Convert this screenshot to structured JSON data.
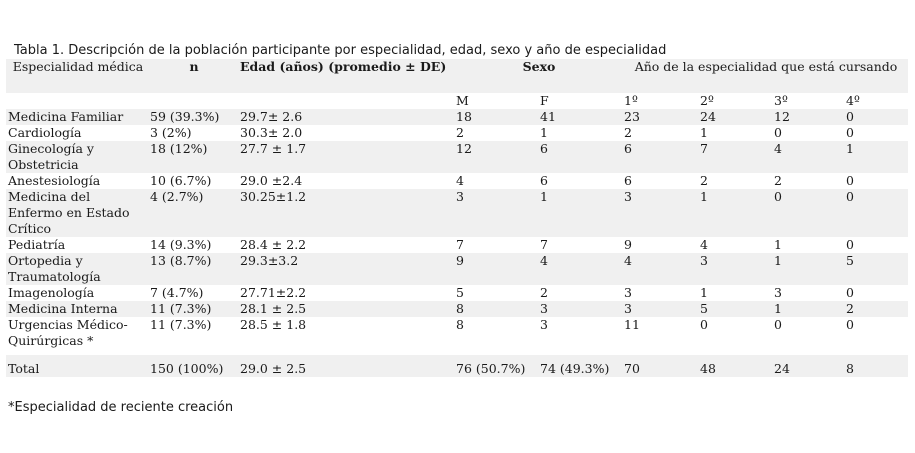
{
  "caption": "Tabla 1. Descripción de la población participante por especialidad, edad, sexo y año de especialidad",
  "headers": {
    "especialidad": "Especialidad médica",
    "n": "n",
    "edad": "Edad (años) (promedio ± DE)",
    "sexo": "Sexo",
    "anio": "Año de la especialidad que está cursando",
    "m": "M",
    "f": "F",
    "y1": "1º",
    "y2": "2º",
    "y3": "3º",
    "y4": "4º"
  },
  "rows": [
    {
      "esp": "Medicina Familiar",
      "n": "59 (39.3%)",
      "edad": "29.7± 2.6",
      "m": "18",
      "f": "41",
      "y1": "23",
      "y2": "24",
      "y3": "12",
      "y4": "0"
    },
    {
      "esp": "Cardiología",
      "n": "3 (2%)",
      "edad": "30.3± 2.0",
      "m": "2",
      "f": "1",
      "y1": "2",
      "y2": "1",
      "y3": "0",
      "y4": "0"
    },
    {
      "esp": "Ginecología y Obstetricia",
      "n": "18 (12%)",
      "edad": "27.7 ± 1.7",
      "m": "12",
      "f": "6",
      "y1": "6",
      "y2": "7",
      "y3": "4",
      "y4": "1"
    },
    {
      "esp": "Anestesiología",
      "n": "10 (6.7%)",
      "edad": "29.0 ±2.4",
      "m": "4",
      "f": "6",
      "y1": "6",
      "y2": "2",
      "y3": "2",
      "y4": "0"
    },
    {
      "esp": "Medicina del Enfermo en Estado Crítico",
      "n": "4 (2.7%)",
      "edad": "30.25±1.2",
      "m": "3",
      "f": "1",
      "y1": "3",
      "y2": "1",
      "y3": "0",
      "y4": "0"
    },
    {
      "esp": "Pediatría",
      "n": "14 (9.3%)",
      "edad": "28.4 ± 2.2",
      "m": "7",
      "f": "7",
      "y1": "9",
      "y2": "4",
      "y3": "1",
      "y4": "0"
    },
    {
      "esp": "Ortopedia y Traumatología",
      "n": "13 (8.7%)",
      "edad": "29.3±3.2",
      "m": "9",
      "f": "4",
      "y1": "4",
      "y2": "3",
      "y3": "1",
      "y4": "5"
    },
    {
      "esp": "Imagenología",
      "n": "7 (4.7%)",
      "edad": "27.71±2.2",
      "m": "5",
      "f": "2",
      "y1": "3",
      "y2": "1",
      "y3": "3",
      "y4": "0"
    },
    {
      "esp": "Medicina Interna",
      "n": "11 (7.3%)",
      "edad": "28.1 ± 2.5",
      "m": "8",
      "f": "3",
      "y1": "3",
      "y2": "5",
      "y3": "1",
      "y4": "2"
    },
    {
      "esp": "Urgencias Médico-Quirúrgicas *",
      "n": "11 (7.3%)",
      "edad": "28.5 ± 1.8",
      "m": "8",
      "f": "3",
      "y1": "11",
      "y2": "0",
      "y3": "0",
      "y4": "0"
    },
    {
      "esp": "Total",
      "n": "150 (100%)",
      "edad": "29.0 ± 2.5",
      "m": "76 (50.7%)",
      "f": "74 (49.3%)",
      "y1": "70",
      "y2": "48",
      "y3": "24",
      "y4": "8"
    }
  ],
  "footnote": "*Especialidad de reciente creación"
}
